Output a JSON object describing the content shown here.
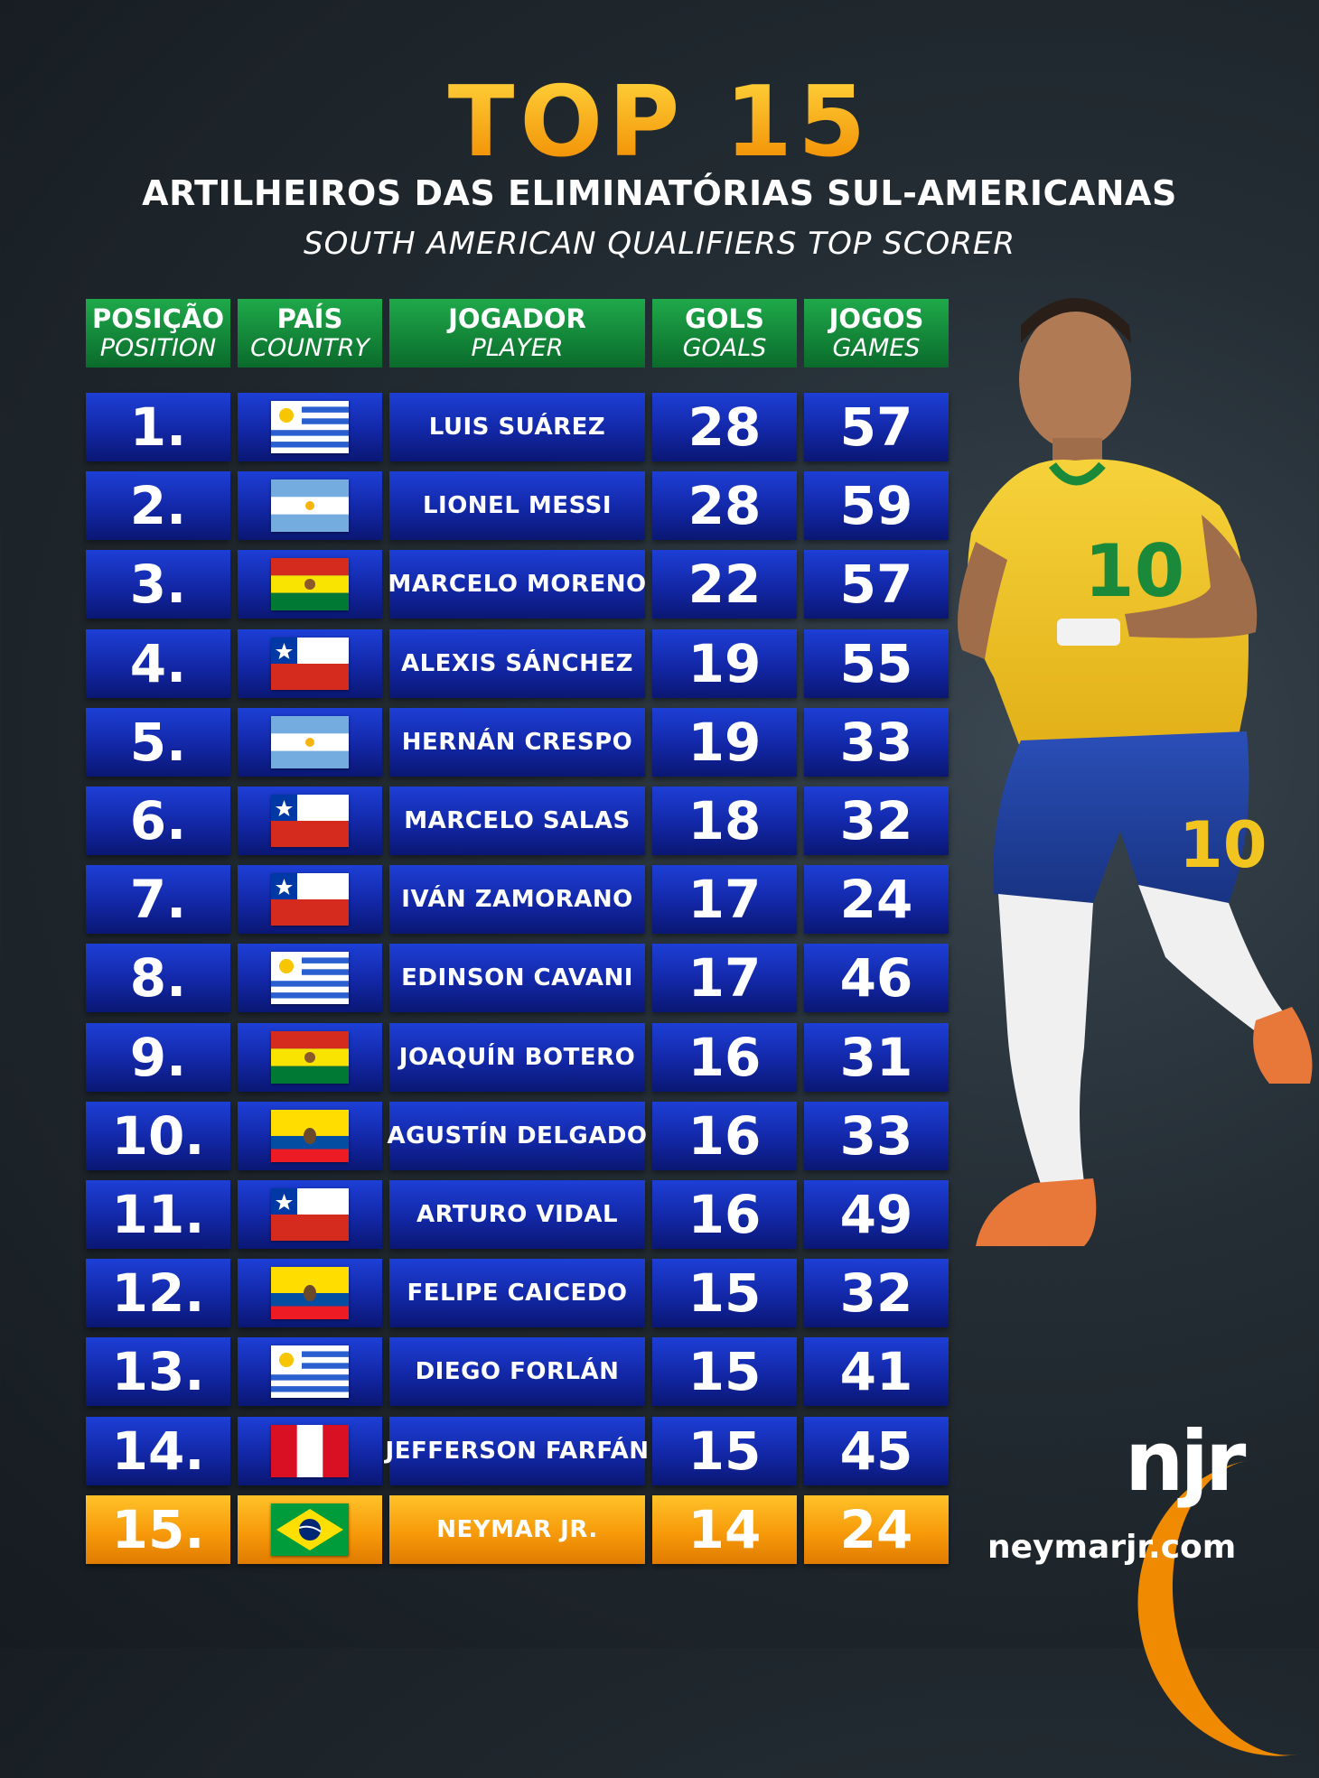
{
  "title": "TOP 15",
  "subtitle": "ARTILHEIROS DAS ELIMINATÓRIAS SUL-AMERICANAS",
  "subtitle_en": "SOUTH AMERICAN QUALIFIERS TOP SCORER",
  "headers": [
    {
      "pt": "POSIÇÃO",
      "en": "POSITION"
    },
    {
      "pt": "PAÍS",
      "en": "COUNTRY"
    },
    {
      "pt": "JOGADOR",
      "en": "PLAYER"
    },
    {
      "pt": "GOLS",
      "en": "GOALS"
    },
    {
      "pt": "JOGOS",
      "en": "GAMES"
    }
  ],
  "rows": [
    {
      "pos": "1.",
      "flag": "uruguay-flag-icon",
      "player": "LUIS SUÁREZ",
      "goals": "28",
      "games": "57"
    },
    {
      "pos": "2.",
      "flag": "argentina-flag-icon",
      "player": "LIONEL MESSI",
      "goals": "28",
      "games": "59"
    },
    {
      "pos": "3.",
      "flag": "bolivia-flag-icon",
      "player": "MARCELO MORENO",
      "goals": "22",
      "games": "57"
    },
    {
      "pos": "4.",
      "flag": "chile-flag-icon",
      "player": "ALEXIS SÁNCHEZ",
      "goals": "19",
      "games": "55"
    },
    {
      "pos": "5.",
      "flag": "argentina-flag-icon",
      "player": "HERNÁN CRESPO",
      "goals": "19",
      "games": "33"
    },
    {
      "pos": "6.",
      "flag": "chile-flag-icon",
      "player": "MARCELO SALAS",
      "goals": "18",
      "games": "32"
    },
    {
      "pos": "7.",
      "flag": "chile-flag-icon",
      "player": "IVÁN ZAMORANO",
      "goals": "17",
      "games": "24"
    },
    {
      "pos": "8.",
      "flag": "uruguay-flag-icon",
      "player": "EDINSON CAVANI",
      "goals": "17",
      "games": "46"
    },
    {
      "pos": "9.",
      "flag": "bolivia-flag-icon",
      "player": "JOAQUÍN BOTERO",
      "goals": "16",
      "games": "31"
    },
    {
      "pos": "10.",
      "flag": "ecuador-flag-icon",
      "player": "AGUSTÍN DELGADO",
      "goals": "16",
      "games": "33"
    },
    {
      "pos": "11.",
      "flag": "chile-flag-icon",
      "player": "ARTURO VIDAL",
      "goals": "16",
      "games": "49"
    },
    {
      "pos": "12.",
      "flag": "ecuador-flag-icon",
      "player": "FELIPE CAICEDO",
      "goals": "15",
      "games": "32"
    },
    {
      "pos": "13.",
      "flag": "uruguay-flag-icon",
      "player": "DIEGO FORLÁN",
      "goals": "15",
      "games": "41"
    },
    {
      "pos": "14.",
      "flag": "peru-flag-icon",
      "player": "JEFFERSON FARFÁN",
      "goals": "15",
      "games": "45"
    },
    {
      "pos": "15.",
      "flag": "brazil-flag-icon",
      "player": "NEYMAR JR.",
      "goals": "14",
      "games": "24",
      "highlight": true
    }
  ],
  "logo_text": "njr",
  "website": "neymarjr.com",
  "colors": {
    "title_gold": "#f5a60c",
    "header_green": "#1fa94a",
    "row_blue": "#1d3fd6",
    "highlight_orange": "#f79a0a"
  }
}
